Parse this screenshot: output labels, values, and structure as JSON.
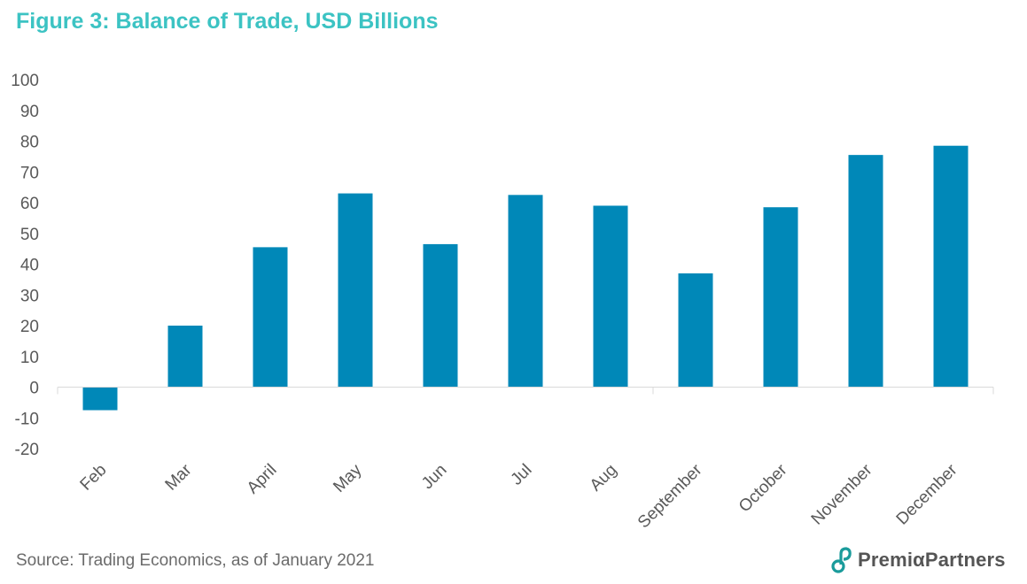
{
  "title": "Figure 3: Balance of Trade, USD Billions",
  "source": "Source: Trading Economics, as of January 2021",
  "logo": {
    "text": "PremiαPartners",
    "icon": "premia-partners-logo-icon",
    "color": "#1a9b9b"
  },
  "colors": {
    "bar": "#0088b8",
    "title": "#3cc3c3",
    "axis_text": "#595959",
    "axis_line": "#d9d9d9"
  },
  "chart_data": {
    "type": "bar",
    "categories": [
      "Feb",
      "Mar",
      "April",
      "May",
      "Jun",
      "Jul",
      "Aug",
      "September",
      "October",
      "November",
      "December"
    ],
    "values": [
      -7.5,
      20,
      45.5,
      63,
      46.5,
      62.5,
      59,
      37,
      58.5,
      75.5,
      78.5
    ],
    "title": "Figure 3: Balance of Trade, USD Billions",
    "xlabel": "",
    "ylabel": "",
    "ylim": [
      -20,
      100
    ],
    "yticks": [
      100,
      90,
      80,
      70,
      60,
      50,
      40,
      30,
      20,
      10,
      0,
      -10,
      -20
    ],
    "grid": false,
    "legend": "none"
  }
}
